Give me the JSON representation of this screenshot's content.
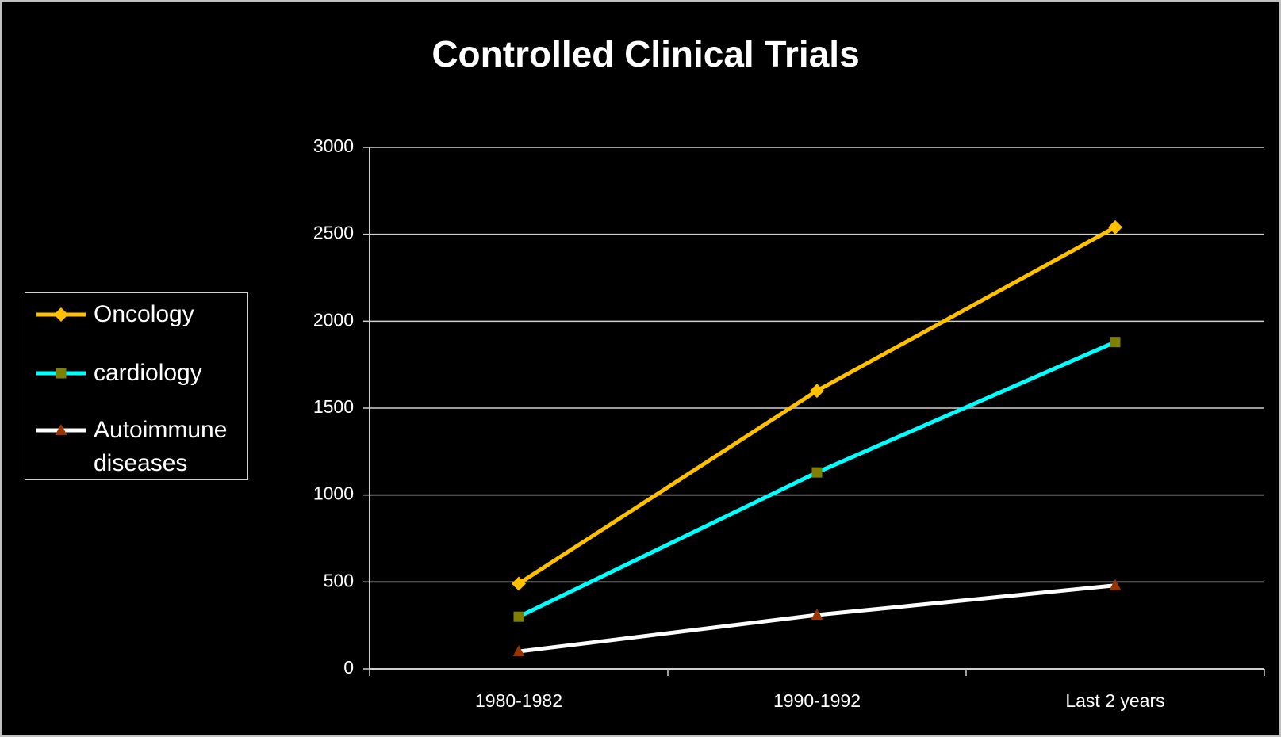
{
  "chart_data": {
    "type": "line",
    "title": "Controlled Clinical Trials",
    "categories": [
      "1980-1982",
      "1990-1992",
      "Last 2 years"
    ],
    "series": [
      {
        "name": "Oncology",
        "color": "#ffc000",
        "marker": "diamond",
        "marker_color": "#ffc000",
        "values": [
          490,
          1600,
          2540
        ]
      },
      {
        "name": "cardiology",
        "color": "#00ffff",
        "marker": "square",
        "marker_color": "#808000",
        "values": [
          300,
          1130,
          1880
        ]
      },
      {
        "name": "Autoimmune diseases",
        "color": "#ffffff",
        "marker": "triangle",
        "marker_color": "#993300",
        "values": [
          100,
          310,
          480
        ]
      }
    ],
    "ylim": [
      0,
      3000
    ],
    "yticks": [
      0,
      500,
      1000,
      1500,
      2000,
      2500,
      3000
    ],
    "grid": true,
    "legend": "left"
  }
}
